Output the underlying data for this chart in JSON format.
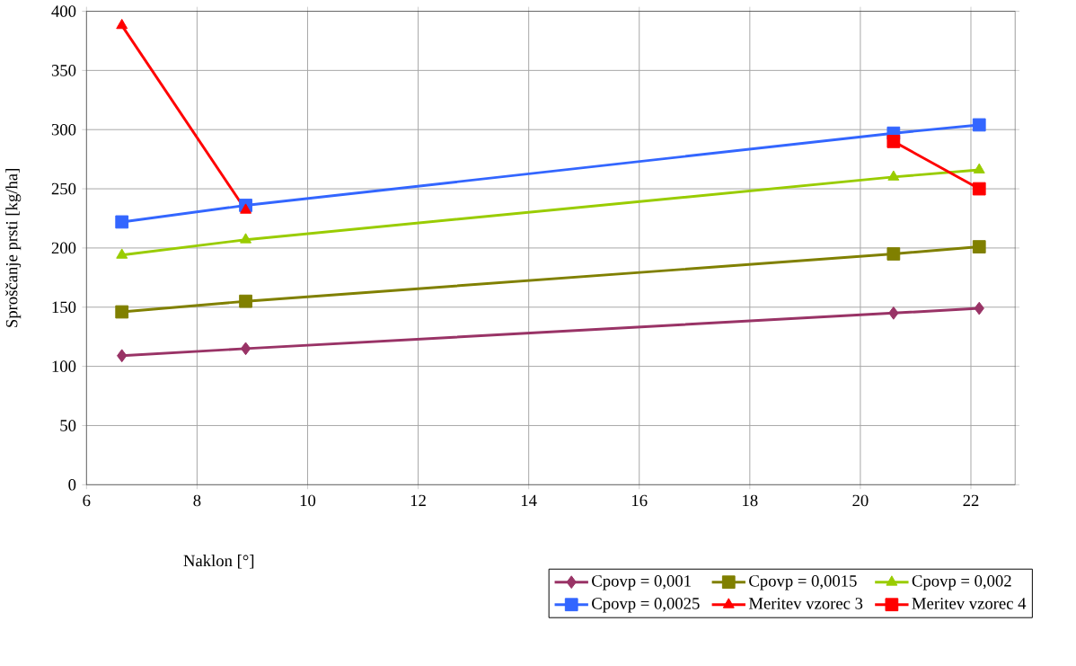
{
  "chart_data": {
    "type": "line",
    "xlabel": "Naklon [°]",
    "ylabel": "Sproščanje prsti [kg/ha]",
    "xlim": [
      6,
      22.8
    ],
    "xticks": [
      6,
      8,
      10,
      12,
      14,
      16,
      18,
      20,
      22
    ],
    "ylim": [
      0,
      400
    ],
    "yticks": [
      0,
      50,
      100,
      150,
      200,
      250,
      300,
      350,
      400
    ],
    "grid": true,
    "legend": "bottom right",
    "line_style": "solid",
    "series": [
      {
        "name": "Cpovp = 0,001",
        "color": "#993366",
        "marker": "diamond",
        "x": [
          6.64,
          8.88,
          20.6,
          22.15
        ],
        "values": [
          109,
          115,
          145,
          149
        ]
      },
      {
        "name": "Cpovp = 0,0015",
        "color": "#808000",
        "marker": "square",
        "x": [
          6.64,
          8.88,
          20.6,
          22.15
        ],
        "values": [
          146,
          155,
          195,
          201
        ]
      },
      {
        "name": "Cpovp = 0,002",
        "color": "#99cc00",
        "marker": "triangle",
        "x": [
          6.64,
          8.88,
          20.6,
          22.15
        ],
        "values": [
          194,
          207,
          260,
          266
        ]
      },
      {
        "name": "Cpovp = 0,0025",
        "color": "#3366ff",
        "marker": "square",
        "x": [
          6.64,
          8.88,
          20.6,
          22.15
        ],
        "values": [
          222,
          236,
          297,
          304
        ]
      },
      {
        "name": "Meritev vzorec 3",
        "color": "#ff0000",
        "marker": "triangle",
        "x": [
          6.64,
          8.88
        ],
        "values": [
          388,
          232
        ]
      },
      {
        "name": "Meritev vzorec 4",
        "color": "#ff0000",
        "marker": "square",
        "x": [
          20.6,
          22.15
        ],
        "values": [
          290,
          250
        ]
      }
    ]
  }
}
